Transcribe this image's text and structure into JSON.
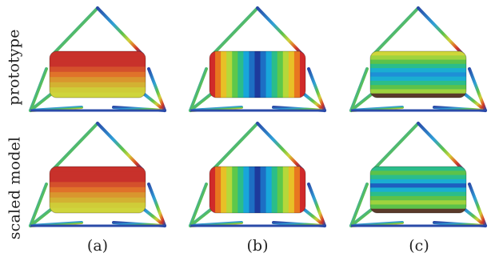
{
  "row_labels": [
    "prototype",
    "scaled model"
  ],
  "column_labels": [
    "(a)",
    "(b)",
    "(c)"
  ],
  "colors": {
    "red": "#c8312b",
    "orange": "#e0722a",
    "yellow_orange": "#d6a32d",
    "yellow": "#cfd23a",
    "green": "#5cc24a",
    "cyan": "#19a8d8",
    "blue": "#1e3d9e",
    "frame_blue": "#2a4aa8",
    "dark_bottom": "#5a3a2a"
  },
  "panels": [
    {
      "row": 0,
      "col": 0,
      "pattern": "horizontal",
      "bands": [
        "#c8312b",
        "#c8312b",
        "#c8312b",
        "#d4502c",
        "#e0722a",
        "#d9962e",
        "#d3b132",
        "#cfcc38",
        "#cfd53c"
      ]
    },
    {
      "row": 0,
      "col": 1,
      "pattern": "vertical",
      "bands": [
        "#d02a2a",
        "#e8761f",
        "#e8c027",
        "#b6d83a",
        "#5ec84a",
        "#2bbd8a",
        "#18a6da",
        "#1d6fc4",
        "#1d3a9c",
        "#1d6fc4",
        "#18a6da",
        "#2bbd8a",
        "#5ec84a",
        "#b6d83a",
        "#e8c027",
        "#e8761f",
        "#d02a2a"
      ]
    },
    {
      "row": 0,
      "col": 2,
      "pattern": "horizontal",
      "bands": [
        "#cfd63a",
        "#9fd33e",
        "#5cc24a",
        "#2bbd8a",
        "#1aaed1",
        "#1e8fd6",
        "#1aaed1",
        "#2bbd8a",
        "#5cc24a",
        "#9fd33e",
        "#5a3a2a"
      ]
    },
    {
      "row": 1,
      "col": 0,
      "pattern": "horizontal",
      "bands": [
        "#c8312b",
        "#c8312b",
        "#c8312b",
        "#d4502c",
        "#e0722a",
        "#d9962e",
        "#d3b132",
        "#cfcc38",
        "#cfd53c"
      ]
    },
    {
      "row": 1,
      "col": 1,
      "pattern": "vertical",
      "bands": [
        "#d02a2a",
        "#e8761f",
        "#e8c027",
        "#b6d83a",
        "#5ec84a",
        "#2bbd8a",
        "#18a6da",
        "#1d6fc4",
        "#1d3a9c",
        "#1d6fc4",
        "#18a6da",
        "#2bbd8a",
        "#5ec84a",
        "#b6d83a",
        "#e8c027",
        "#e8761f",
        "#d02a2a"
      ]
    },
    {
      "row": 1,
      "col": 2,
      "pattern": "horizontal",
      "bands": [
        "#2bbd8a",
        "#5cc24a",
        "#2bbd8a",
        "#1aaed1",
        "#1e5fc0",
        "#1aaed1",
        "#2bbd8a",
        "#5cc24a",
        "#9fd33e",
        "#5cc24a",
        "#5a3a2a"
      ]
    }
  ]
}
